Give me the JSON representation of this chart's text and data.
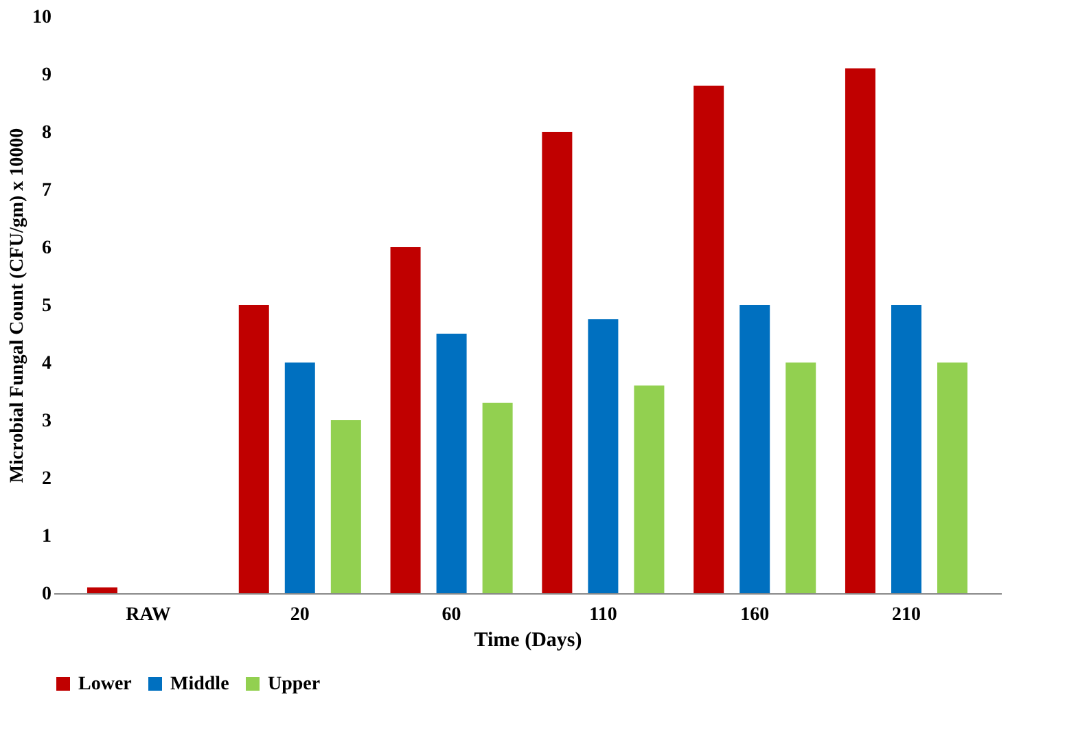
{
  "chart_data": {
    "type": "bar",
    "xlabel": "Time (Days)",
    "ylabel": "Microbial Fungal Count (CFU/gm) x 10000",
    "categories": [
      "RAW",
      "20",
      "60",
      "110",
      "160",
      "210"
    ],
    "series": [
      {
        "name": "Lower",
        "color": "#c00000",
        "values": [
          0.1,
          5,
          6,
          8,
          8.8,
          9.1
        ]
      },
      {
        "name": "Middle",
        "color": "#0070c0",
        "values": [
          null,
          4,
          4.5,
          4.75,
          5,
          5
        ]
      },
      {
        "name": "Upper",
        "color": "#92d050",
        "values": [
          null,
          3,
          3.3,
          3.6,
          4,
          4
        ]
      }
    ],
    "ylim": [
      0,
      10
    ],
    "yticks": [
      0,
      1,
      2,
      3,
      4,
      5,
      6,
      7,
      8,
      9,
      10
    ],
    "grid": false,
    "legend": "bottom"
  }
}
